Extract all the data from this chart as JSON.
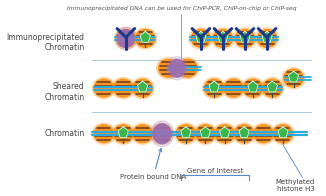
{
  "bg_color": "#ffffff",
  "row_labels": [
    "Chromatin",
    "Sheared\nChromatin",
    "Immunoprecipitated\nChromatin"
  ],
  "annotation_protein_bound": "Protein bound DNA",
  "annotation_gene": "Gene of interest",
  "annotation_methylated": "Methylated\nhistone H3",
  "footer": "Immunoprecipitated DNA can be used for ChIP-PCR, ChIP-on-chip or ChIP-seq",
  "dna_color": "#29abe2",
  "histone_color": "#f7941d",
  "histone_stripe_color": "#6b3a2a",
  "green_color": "#3cb54a",
  "protein_color": "#9b6db5",
  "antibody_color": "#1a3a8f",
  "sep_line_color": "#a0c0d0",
  "label_color": "#444444",
  "arrow_color": "#5588cc",
  "bracket_color": "#5588cc"
}
